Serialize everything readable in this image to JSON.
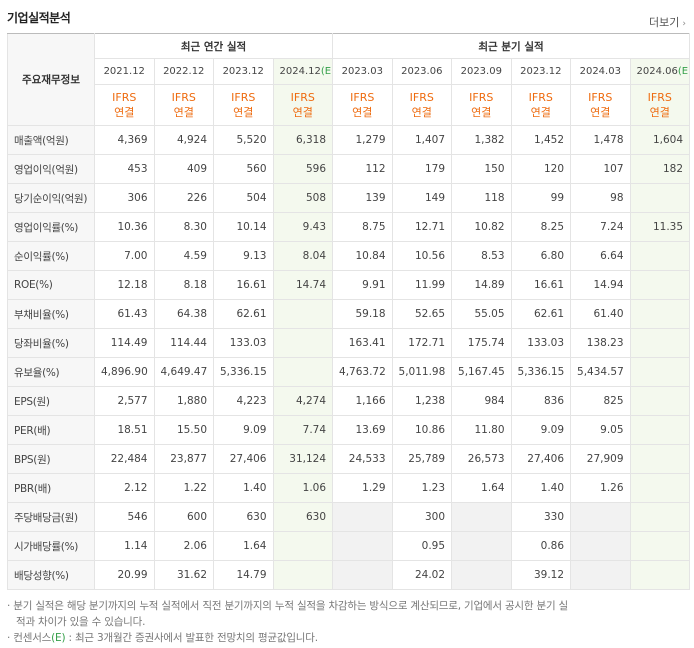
{
  "header": {
    "title": "기업실적분석",
    "more": "더보기"
  },
  "table": {
    "corner": "주요재무정보",
    "annual_title": "최근 연간 실적",
    "quarter_title": "최근 분기 실적",
    "periods": [
      {
        "date": "2021.12",
        "standard": "IFRS",
        "basis": "연결"
      },
      {
        "date": "2022.12",
        "standard": "IFRS",
        "basis": "연결"
      },
      {
        "date": "2023.12",
        "standard": "IFRS",
        "basis": "연결"
      },
      {
        "date": "2024.12",
        "mark": "(E)",
        "standard": "IFRS",
        "basis": "연결"
      },
      {
        "date": "2023.03",
        "standard": "IFRS",
        "basis": "연결"
      },
      {
        "date": "2023.06",
        "standard": "IFRS",
        "basis": "연결"
      },
      {
        "date": "2023.09",
        "standard": "IFRS",
        "basis": "연결"
      },
      {
        "date": "2023.12",
        "standard": "IFRS",
        "basis": "연결"
      },
      {
        "date": "2024.03",
        "standard": "IFRS",
        "basis": "연결"
      },
      {
        "date": "2024.06",
        "mark": "(E)",
        "standard": "IFRS",
        "basis": "연결"
      }
    ],
    "rows": [
      {
        "label": "매출액(억원)",
        "values": [
          "4,369",
          "4,924",
          "5,520",
          "6,318",
          "1,279",
          "1,407",
          "1,382",
          "1,452",
          "1,478",
          "1,604"
        ]
      },
      {
        "label": "영업이익(억원)",
        "values": [
          "453",
          "409",
          "560",
          "596",
          "112",
          "179",
          "150",
          "120",
          "107",
          "182"
        ]
      },
      {
        "label": "당기순이익(억원)",
        "values": [
          "306",
          "226",
          "504",
          "508",
          "139",
          "149",
          "118",
          "99",
          "98",
          null
        ]
      },
      {
        "label": "영업이익률(%)",
        "values": [
          "10.36",
          "8.30",
          "10.14",
          "9.43",
          "8.75",
          "12.71",
          "10.82",
          "8.25",
          "7.24",
          "11.35"
        ]
      },
      {
        "label": "순이익률(%)",
        "values": [
          "7.00",
          "4.59",
          "9.13",
          "8.04",
          "10.84",
          "10.56",
          "8.53",
          "6.80",
          "6.64",
          null
        ]
      },
      {
        "label": "ROE(%)",
        "values": [
          "12.18",
          "8.18",
          "16.61",
          "14.74",
          "9.91",
          "11.99",
          "14.89",
          "16.61",
          "14.94",
          null
        ]
      },
      {
        "label": "부채비율(%)",
        "values": [
          "61.43",
          "64.38",
          "62.61",
          null,
          "59.18",
          "52.65",
          "55.05",
          "62.61",
          "61.40",
          null
        ]
      },
      {
        "label": "당좌비율(%)",
        "values": [
          "114.49",
          "114.44",
          "133.03",
          null,
          "163.41",
          "172.71",
          "175.74",
          "133.03",
          "138.23",
          null
        ]
      },
      {
        "label": "유보율(%)",
        "values": [
          "4,896.90",
          "4,649.47",
          "5,336.15",
          null,
          "4,763.72",
          "5,011.98",
          "5,167.45",
          "5,336.15",
          "5,434.57",
          null
        ]
      },
      {
        "label": "EPS(원)",
        "values": [
          "2,577",
          "1,880",
          "4,223",
          "4,274",
          "1,166",
          "1,238",
          "984",
          "836",
          "825",
          null
        ]
      },
      {
        "label": "PER(배)",
        "values": [
          "18.51",
          "15.50",
          "9.09",
          "7.74",
          "13.69",
          "10.86",
          "11.80",
          "9.09",
          "9.05",
          null
        ]
      },
      {
        "label": "BPS(원)",
        "values": [
          "22,484",
          "23,877",
          "27,406",
          "31,124",
          "24,533",
          "25,789",
          "26,573",
          "27,406",
          "27,909",
          null
        ]
      },
      {
        "label": "PBR(배)",
        "values": [
          "2.12",
          "1.22",
          "1.40",
          "1.06",
          "1.29",
          "1.23",
          "1.64",
          "1.40",
          "1.26",
          null
        ]
      },
      {
        "label": "주당배당금(원)",
        "values": [
          "546",
          "600",
          "630",
          "630",
          null,
          "300",
          null,
          "330",
          null,
          null
        ]
      },
      {
        "label": "시가배당률(%)",
        "values": [
          "1.14",
          "2.06",
          "1.64",
          null,
          null,
          "0.95",
          null,
          "0.86",
          null,
          null
        ]
      },
      {
        "label": "배당성향(%)",
        "values": [
          "20.99",
          "31.62",
          "14.79",
          null,
          null,
          "24.02",
          null,
          "39.12",
          null,
          null
        ]
      }
    ]
  },
  "notes": [
    "분기 실적은 해당 분기까지의 누적 실적에서 직전 분기까지의 누적 실적을 차감하는 방식으로 계산되므로, 기업에서 공시한 분기 실적과 차이가 있을 수 있습니다.",
    {
      "term": "컨센서스",
      "mark": "(E)",
      "text": ": 최근 3개월간 증권사에서 발표한 전망치의 평균값입니다."
    }
  ]
}
